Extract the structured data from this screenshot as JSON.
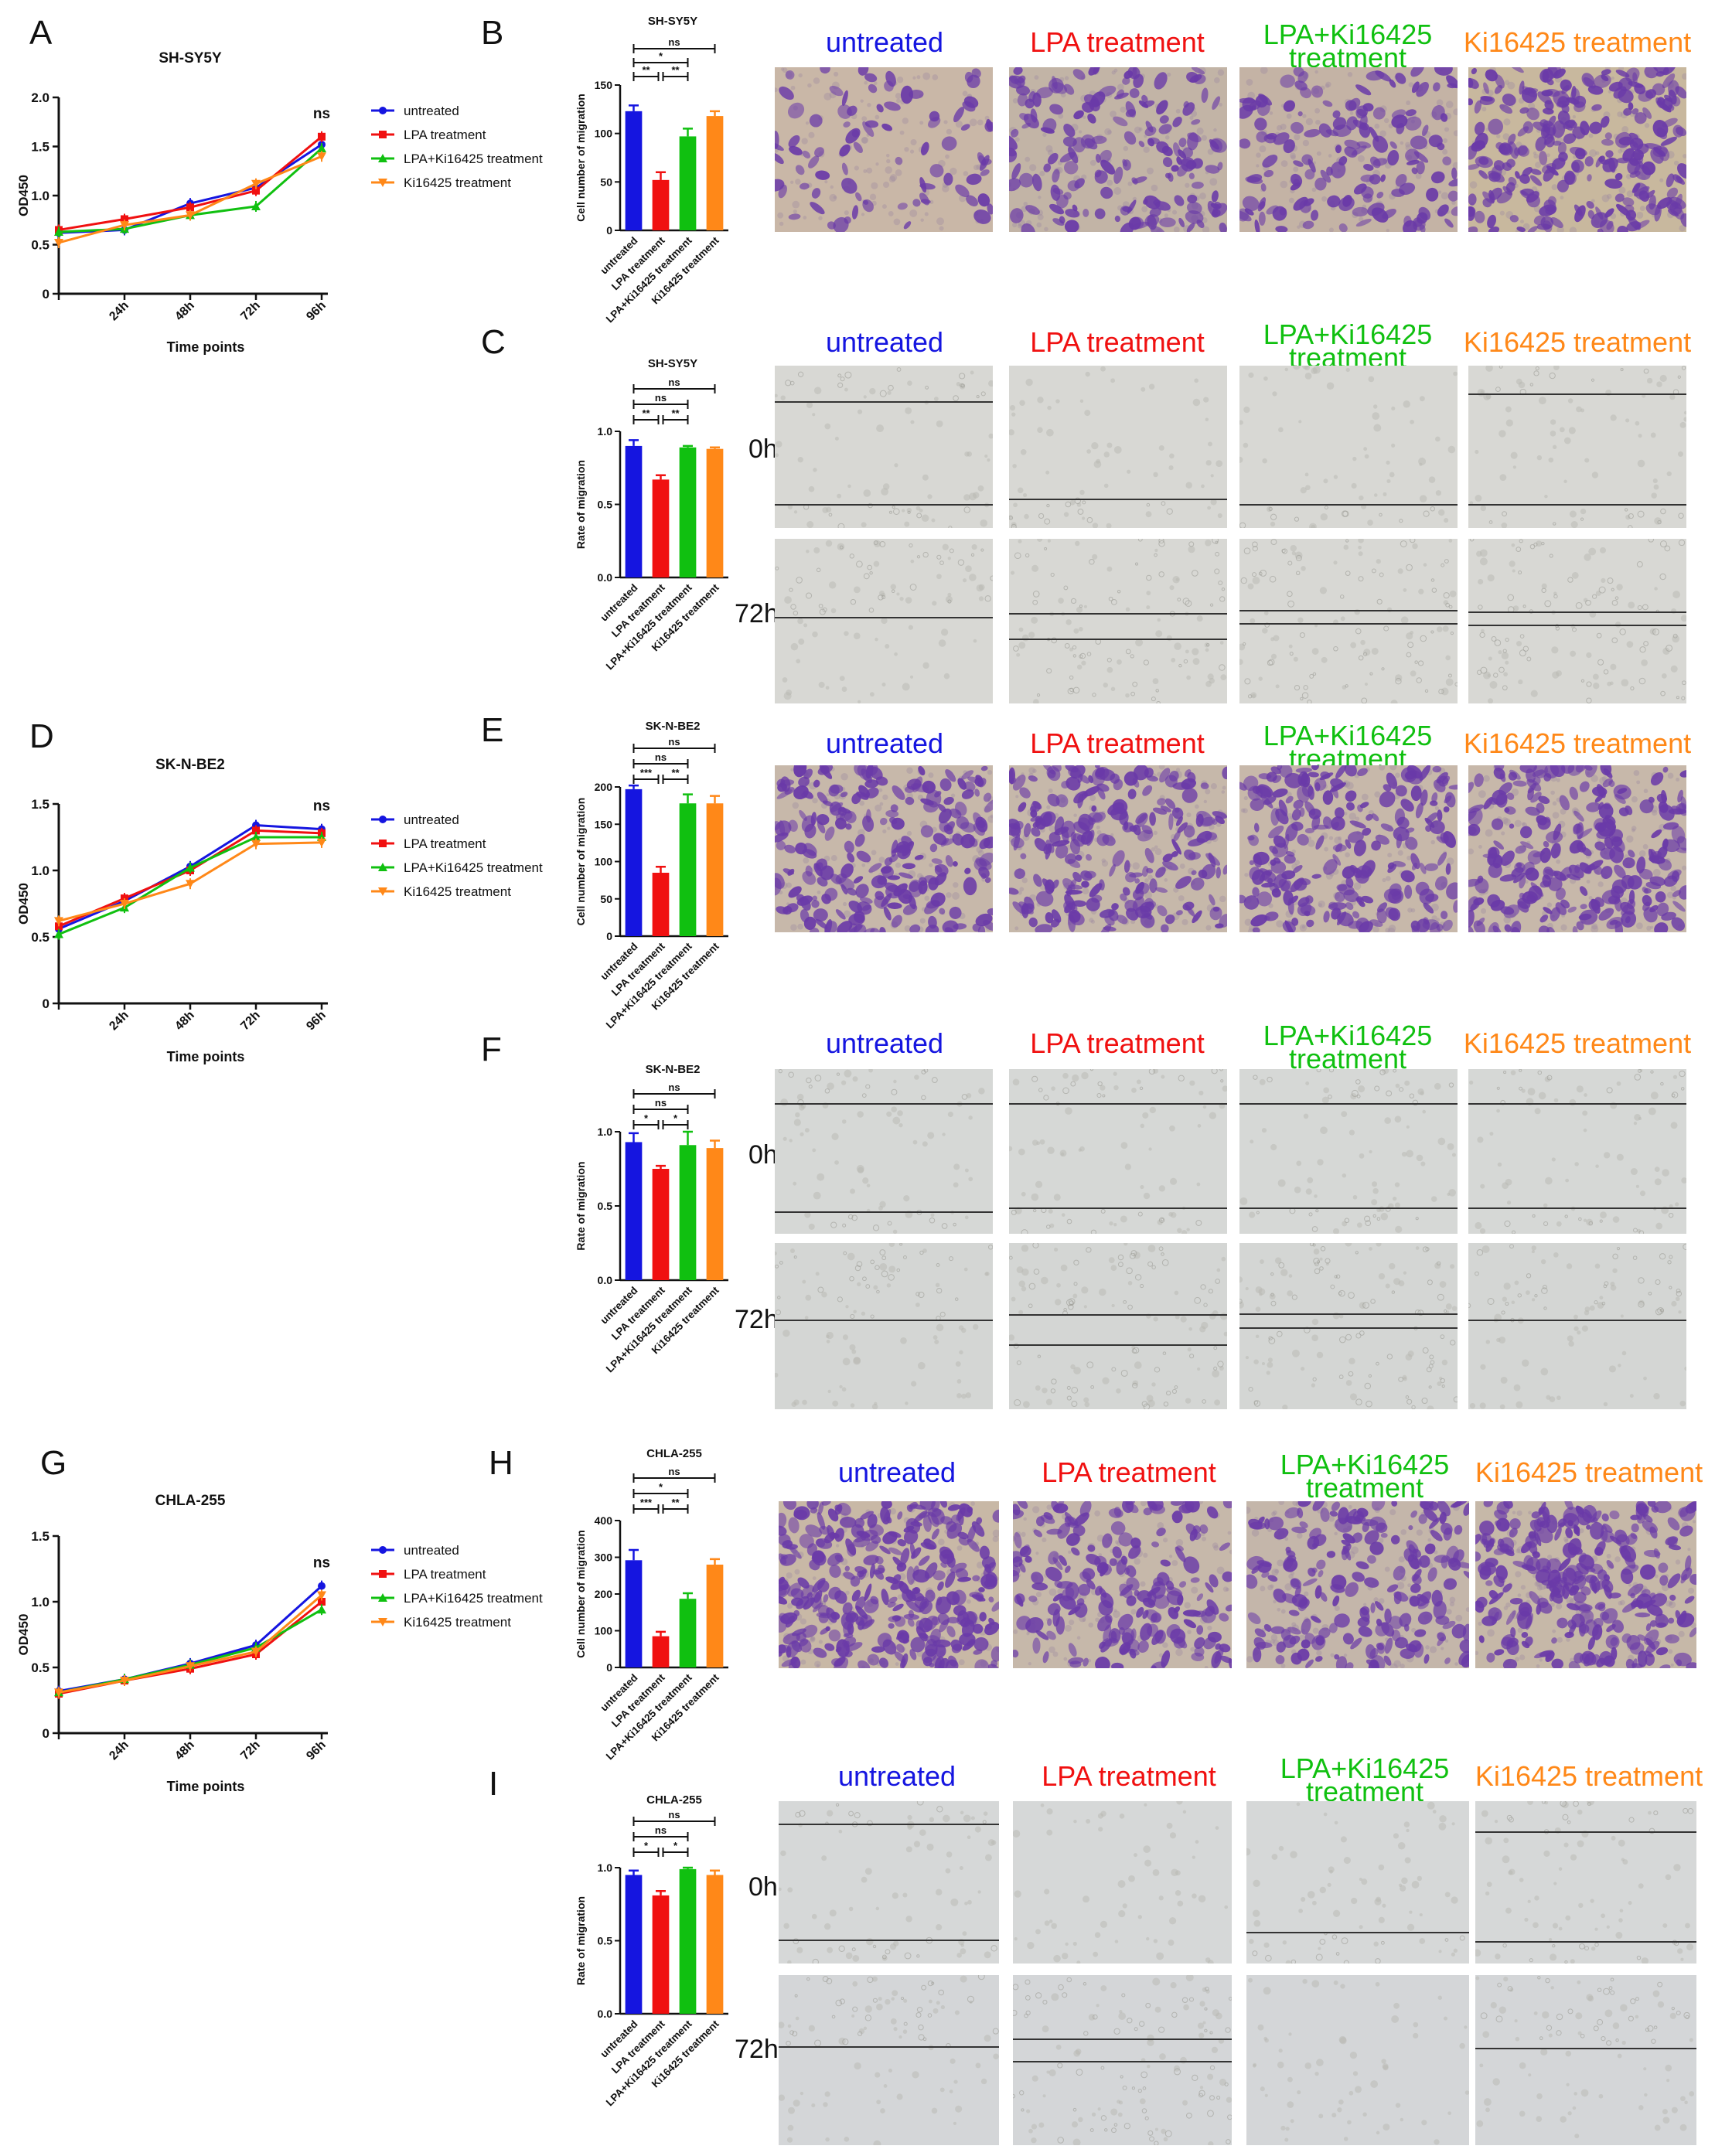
{
  "panel_labels": [
    "A",
    "B",
    "C",
    "D",
    "E",
    "F",
    "G",
    "H",
    "I"
  ],
  "conditions": [
    "untreated",
    "LPA treatment",
    "LPA+Ki16425\ntreatment",
    "Ki16425 treatment"
  ],
  "time_labels": [
    "0h",
    "72h"
  ],
  "colors": {
    "untreated": "#1515e0",
    "LPA": "#f01010",
    "LPA+Ki": "#10c010",
    "Ki": "#ff8818",
    "stain": "#6a3aa8",
    "scratchBg": "#d8d8d4",
    "transBg": "#c8b8a8"
  },
  "legend": [
    "untreated",
    "LPA treatment",
    "LPA+Ki16425 treatment",
    "Ki16425 treatment"
  ],
  "chart_data": [
    {
      "id": "A",
      "type": "line",
      "title": "SH-SY5Y",
      "xlabel": "Time points",
      "ylabel": "OD450",
      "categories": [
        "0h",
        "24h",
        "48h",
        "72h",
        "96h"
      ],
      "xticklabels": [
        "",
        "24h",
        "48h",
        "72h",
        "96h"
      ],
      "yticks": [
        0,
        0.5,
        1.0,
        1.5,
        2.0
      ],
      "ylim": [
        0,
        2.0
      ],
      "annotation": "ns",
      "series": [
        {
          "name": "untreated",
          "values": [
            0.62,
            0.65,
            0.92,
            1.08,
            1.52
          ]
        },
        {
          "name": "LPA treatment",
          "values": [
            0.65,
            0.76,
            0.88,
            1.05,
            1.6
          ]
        },
        {
          "name": "LPA+Ki16425 treatment",
          "values": [
            0.63,
            0.66,
            0.8,
            0.89,
            1.48
          ]
        },
        {
          "name": "Ki16425 treatment",
          "values": [
            0.52,
            0.7,
            0.8,
            1.12,
            1.4
          ]
        }
      ]
    },
    {
      "id": "D",
      "type": "line",
      "title": "SK-N-BE2",
      "xlabel": "Time points",
      "ylabel": "OD450",
      "categories": [
        "0h",
        "24h",
        "48h",
        "72h",
        "96h"
      ],
      "xticklabels": [
        "",
        "24h",
        "48h",
        "72h",
        "96h"
      ],
      "yticks": [
        0,
        0.5,
        1.0,
        1.5
      ],
      "ylim": [
        0,
        1.5
      ],
      "annotation": "ns",
      "series": [
        {
          "name": "untreated",
          "values": [
            0.56,
            0.77,
            1.03,
            1.34,
            1.31
          ]
        },
        {
          "name": "LPA treatment",
          "values": [
            0.58,
            0.79,
            1.0,
            1.3,
            1.28
          ]
        },
        {
          "name": "LPA+Ki16425 treatment",
          "values": [
            0.52,
            0.72,
            1.02,
            1.25,
            1.25
          ]
        },
        {
          "name": "Ki16425 treatment",
          "values": [
            0.62,
            0.75,
            0.9,
            1.2,
            1.21
          ]
        }
      ]
    },
    {
      "id": "G",
      "type": "line",
      "title": "CHLA-255",
      "xlabel": "Time points",
      "ylabel": "OD450",
      "categories": [
        "0h",
        "24h",
        "48h",
        "72h",
        "96h"
      ],
      "xticklabels": [
        "",
        "24h",
        "48h",
        "72h",
        "96h"
      ],
      "yticks": [
        0,
        0.5,
        1.0,
        1.5
      ],
      "ylim": [
        0,
        1.5
      ],
      "annotation": "ns",
      "series": [
        {
          "name": "untreated",
          "values": [
            0.32,
            0.41,
            0.53,
            0.67,
            1.12
          ]
        },
        {
          "name": "LPA treatment",
          "values": [
            0.3,
            0.4,
            0.49,
            0.6,
            1.0
          ]
        },
        {
          "name": "LPA+Ki16425 treatment",
          "values": [
            0.31,
            0.41,
            0.52,
            0.65,
            0.94
          ]
        },
        {
          "name": "Ki16425 treatment",
          "values": [
            0.31,
            0.4,
            0.51,
            0.62,
            1.05
          ]
        }
      ]
    },
    {
      "id": "B",
      "type": "bar",
      "title": "SH-SY5Y",
      "ylabel": "Cell number of migration",
      "categories": [
        "untreated",
        "LPA treatment",
        "LPA+Ki16425 treatment",
        "Ki16425 treatment"
      ],
      "values": [
        123,
        52,
        97,
        118
      ],
      "errors": [
        6,
        8,
        8,
        5
      ],
      "yticks": [
        0,
        50,
        100,
        150
      ],
      "ylim": [
        0,
        150
      ],
      "sig": [
        {
          "from": 0,
          "to": 3,
          "label": "ns"
        },
        {
          "from": 0,
          "to": 2,
          "label": "*"
        },
        {
          "from": 0,
          "to": 1,
          "label": "**"
        },
        {
          "from": 1,
          "to": 2,
          "label": "**"
        }
      ]
    },
    {
      "id": "C",
      "type": "bar",
      "title": "SH-SY5Y",
      "ylabel": "Rate of migration",
      "categories": [
        "untreated",
        "LPA treatment",
        "LPA+Ki16425 treatment",
        "Ki16425 treatment"
      ],
      "values": [
        0.9,
        0.67,
        0.89,
        0.88
      ],
      "errors": [
        0.04,
        0.03,
        0.01,
        0.01
      ],
      "yticks": [
        0.0,
        0.5,
        1.0
      ],
      "ylim": [
        0,
        1.0
      ],
      "sig": [
        {
          "from": 0,
          "to": 3,
          "label": "ns"
        },
        {
          "from": 0,
          "to": 2,
          "label": "ns"
        },
        {
          "from": 0,
          "to": 1,
          "label": "**"
        },
        {
          "from": 1,
          "to": 2,
          "label": "**"
        }
      ]
    },
    {
      "id": "E",
      "type": "bar",
      "title": "SK-N-BE2",
      "ylabel": "Cell number of migration",
      "categories": [
        "untreated",
        "LPA treatment",
        "LPA+Ki16425 treatment",
        "Ki16425 treatment"
      ],
      "values": [
        197,
        85,
        178,
        178
      ],
      "errors": [
        5,
        8,
        12,
        10
      ],
      "yticks": [
        0,
        50,
        100,
        150,
        200
      ],
      "ylim": [
        0,
        200
      ],
      "sig": [
        {
          "from": 0,
          "to": 3,
          "label": "ns"
        },
        {
          "from": 0,
          "to": 2,
          "label": "ns"
        },
        {
          "from": 0,
          "to": 1,
          "label": "***"
        },
        {
          "from": 1,
          "to": 2,
          "label": "**"
        }
      ]
    },
    {
      "id": "F",
      "type": "bar",
      "title": "SK-N-BE2",
      "ylabel": "Rate of migration",
      "categories": [
        "untreated",
        "LPA treatment",
        "LPA+Ki16425 treatment",
        "Ki16425 treatment"
      ],
      "values": [
        0.93,
        0.75,
        0.91,
        0.89
      ],
      "errors": [
        0.06,
        0.02,
        0.09,
        0.05
      ],
      "yticks": [
        0.0,
        0.5,
        1.0
      ],
      "ylim": [
        0,
        1.0
      ],
      "sig": [
        {
          "from": 0,
          "to": 3,
          "label": "ns"
        },
        {
          "from": 0,
          "to": 2,
          "label": "ns"
        },
        {
          "from": 0,
          "to": 1,
          "label": "*"
        },
        {
          "from": 1,
          "to": 2,
          "label": "*"
        }
      ]
    },
    {
      "id": "H",
      "type": "bar",
      "title": "CHLA-255",
      "ylabel": "Cell number of migration",
      "categories": [
        "untreated",
        "LPA treatment",
        "LPA+Ki16425 treatment",
        "Ki16425 treatment"
      ],
      "values": [
        292,
        85,
        187,
        280
      ],
      "errors": [
        28,
        12,
        15,
        15
      ],
      "yticks": [
        0,
        100,
        200,
        300,
        400
      ],
      "ylim": [
        0,
        400
      ],
      "sig": [
        {
          "from": 0,
          "to": 3,
          "label": "ns"
        },
        {
          "from": 0,
          "to": 2,
          "label": "*"
        },
        {
          "from": 0,
          "to": 1,
          "label": "***"
        },
        {
          "from": 1,
          "to": 2,
          "label": "**"
        }
      ]
    },
    {
      "id": "I",
      "type": "bar",
      "title": "CHLA-255",
      "ylabel": "Rate of migration",
      "categories": [
        "untreated",
        "LPA treatment",
        "LPA+Ki16425 treatment",
        "Ki16425 treatment"
      ],
      "values": [
        0.95,
        0.81,
        0.99,
        0.95
      ],
      "errors": [
        0.03,
        0.03,
        0.01,
        0.03
      ],
      "yticks": [
        0.0,
        0.5,
        1.0
      ],
      "ylim": [
        0,
        1.0
      ],
      "sig": [
        {
          "from": 0,
          "to": 3,
          "label": "ns"
        },
        {
          "from": 0,
          "to": 2,
          "label": "ns"
        },
        {
          "from": 0,
          "to": 1,
          "label": "*"
        },
        {
          "from": 1,
          "to": 2,
          "label": "*"
        }
      ]
    }
  ]
}
